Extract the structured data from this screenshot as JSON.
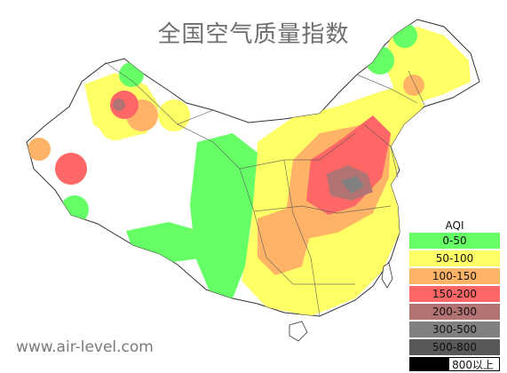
{
  "title": "全国空气质量指数",
  "watermark": "www.air-level.com",
  "legend": {
    "title": "AQI",
    "items": [
      {
        "label": "0-50",
        "color": "#66ff66"
      },
      {
        "label": "50-100",
        "color": "#ffff66"
      },
      {
        "label": "100-150",
        "color": "#ffb366"
      },
      {
        "label": "150-200",
        "color": "#ff6666"
      },
      {
        "label": "200-300",
        "color": "#b27373"
      },
      {
        "label": "300-500",
        "color": "#808080"
      },
      {
        "label": "500-800",
        "color": "#595959"
      },
      {
        "label": "800以上",
        "color": "#000000"
      }
    ]
  }
}
